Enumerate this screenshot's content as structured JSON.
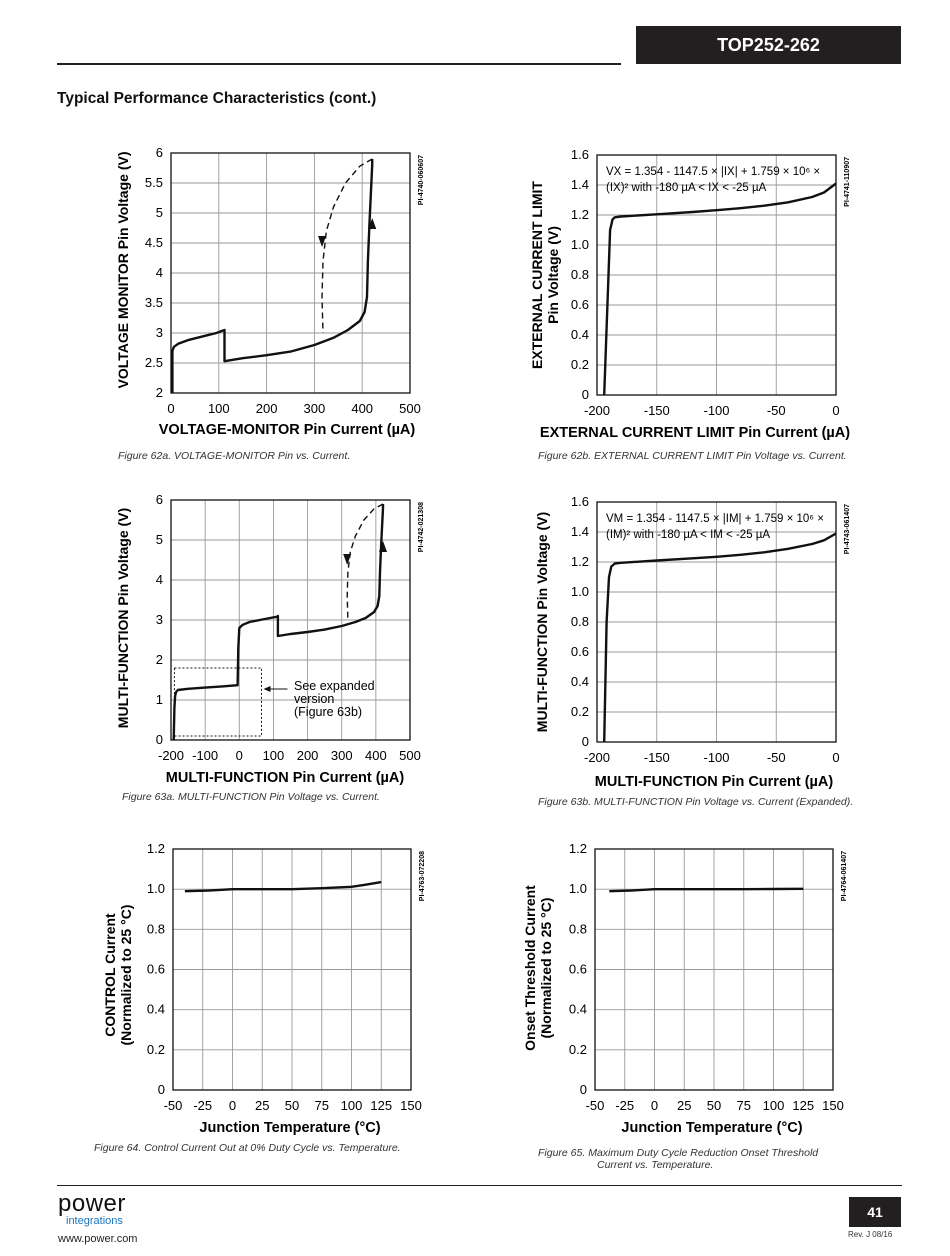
{
  "header": {
    "part_number": "TOP252-262",
    "section_title": "Typical Performance Characteristics (cont.)"
  },
  "footer": {
    "logo_power": "power",
    "logo_integrations": "integrations",
    "url": "www.power.com",
    "page_number": "41",
    "revision": "Rev. J 08/16"
  },
  "chart_data": [
    {
      "id": "fig62a",
      "type": "line",
      "code": "PI-4740-060607",
      "caption": "Figure 62a.  VOLTAGE-MONITOR Pin vs. Current.",
      "xlabel": "VOLTAGE-MONITOR Pin Current (µA)",
      "ylabel": "VOLTAGE MONITOR Pin Voltage (V)",
      "xlim": [
        0,
        500
      ],
      "ylim": [
        2,
        6
      ],
      "xticks": [
        "0",
        "100",
        "200",
        "300",
        "400",
        "500"
      ],
      "yticks": [
        "2",
        "2.5",
        "3",
        "3.5",
        "4",
        "4.5",
        "5",
        "5.5",
        "6"
      ],
      "grid": true,
      "series": [
        {
          "style": "solid",
          "x": [
            3,
            3,
            6,
            15,
            35,
            65,
            95,
            112,
            112,
            150,
            200,
            250,
            300,
            340,
            370,
            395,
            405,
            410,
            412,
            415,
            418,
            421,
            421
          ],
          "y": [
            2,
            2.7,
            2.77,
            2.82,
            2.88,
            2.94,
            3.0,
            3.05,
            2.53,
            2.58,
            2.63,
            2.69,
            2.8,
            2.92,
            3.05,
            3.2,
            3.35,
            3.6,
            4.2,
            4.8,
            5.3,
            5.8,
            5.9
          ]
        },
        {
          "style": "dashed",
          "x": [
            421,
            395,
            365,
            340,
            325,
            318,
            316,
            318
          ],
          "y": [
            5.9,
            5.78,
            5.5,
            5.1,
            4.7,
            4.2,
            3.6,
            3.0
          ]
        }
      ],
      "arrows": [
        {
          "x": 421,
          "y": 4.8,
          "dir": "up"
        },
        {
          "x": 316,
          "y": 4.55,
          "dir": "down"
        }
      ]
    },
    {
      "id": "fig62b",
      "type": "line",
      "code": "PI-4741-110907",
      "caption": "Figure 62b.  EXTERNAL CURRENT LIMIT Pin Voltage vs. Current.",
      "xlabel": "EXTERNAL CURRENT LIMIT Pin Current (µA)",
      "ylabel": [
        "EXTERNAL CURRENT LIMIT",
        "Pin Voltage (V)"
      ],
      "xlim": [
        -200,
        0
      ],
      "ylim": [
        0,
        1.6
      ],
      "xticks": [
        "-200",
        "-150",
        "-100",
        "-50",
        "0"
      ],
      "yticks": [
        "0",
        "0.2",
        "0.4",
        "0.6",
        "0.8",
        "1.0",
        "1.2",
        "1.4",
        "1.6"
      ],
      "grid": true,
      "annotation": [
        "VX = 1.354 - 1147.5 × |IX| + 1.759 × 10⁶ ×",
        "(IX)² with -180 µA < IX < -25 µA"
      ],
      "series": [
        {
          "style": "solid",
          "x": [
            -194,
            -189,
            -187,
            -185,
            -180,
            -150,
            -120,
            -100,
            -80,
            -60,
            -40,
            -20,
            -10,
            0
          ],
          "y": [
            0,
            1.1,
            1.17,
            1.185,
            1.19,
            1.205,
            1.22,
            1.232,
            1.245,
            1.262,
            1.285,
            1.32,
            1.35,
            1.41
          ]
        }
      ]
    },
    {
      "id": "fig63a",
      "type": "line",
      "code": "PI-4742-021308",
      "caption": "Figure 63a. MULTI-FUNCTION Pin Voltage vs. Current.",
      "xlabel": "MULTI-FUNCTION Pin Current (µA)",
      "ylabel": "MULTI-FUNCTION Pin Voltage (V)",
      "xlim": [
        -200,
        500
      ],
      "ylim": [
        0,
        6
      ],
      "xticks": [
        "-200",
        "-100",
        "0",
        "100",
        "200",
        "300",
        "400",
        "500"
      ],
      "yticks": [
        "0",
        "1",
        "2",
        "3",
        "4",
        "5",
        "6"
      ],
      "grid": true,
      "annotation": [
        "See expanded",
        "version",
        "(Figure 63b)"
      ],
      "expanded_box": {
        "x": [
          -190,
          65
        ],
        "y": [
          0.1,
          1.8
        ]
      },
      "series": [
        {
          "style": "solid",
          "x": [
            -192,
            -190,
            -188,
            -185,
            -180,
            -150,
            -100,
            -50,
            -5,
            -3,
            0,
            10,
            30,
            60,
            90,
            110,
            113,
            113,
            150,
            200,
            250,
            300,
            340,
            370,
            395,
            405,
            410,
            412,
            415,
            418,
            421,
            421
          ],
          "y": [
            0,
            0.8,
            1.1,
            1.2,
            1.25,
            1.28,
            1.31,
            1.34,
            1.37,
            2.3,
            2.8,
            2.88,
            2.95,
            3.0,
            3.05,
            3.08,
            3.1,
            2.6,
            2.65,
            2.7,
            2.76,
            2.85,
            2.95,
            3.05,
            3.2,
            3.35,
            3.6,
            4.2,
            4.8,
            5.3,
            5.8,
            5.9
          ]
        },
        {
          "style": "dashed",
          "x": [
            421,
            395,
            365,
            340,
            325,
            318,
            316,
            318
          ],
          "y": [
            5.9,
            5.78,
            5.5,
            5.1,
            4.7,
            4.2,
            3.6,
            3.0
          ]
        }
      ],
      "arrows": [
        {
          "x": 421,
          "y": 4.8,
          "dir": "up"
        },
        {
          "x": 316,
          "y": 4.55,
          "dir": "down"
        }
      ]
    },
    {
      "id": "fig63b",
      "type": "line",
      "code": "PI-4743-061407",
      "caption": "Figure 63b.  MULTI-FUNCTION Pin Voltage vs. Current (Expanded).",
      "xlabel": "MULTI-FUNCTION Pin Current (µA)",
      "ylabel": "MULTI-FUNCTION Pin Voltage (V)",
      "xlim": [
        -200,
        0
      ],
      "ylim": [
        0,
        1.6
      ],
      "xticks": [
        "-200",
        "-150",
        "-100",
        "-50",
        "0"
      ],
      "yticks": [
        "0",
        "0.2",
        "0.4",
        "0.6",
        "0.8",
        "1.0",
        "1.2",
        "1.4",
        "1.6"
      ],
      "grid": true,
      "annotation": [
        "VM = 1.354 - 1147.5 × |IM| + 1.759 × 10⁶ ×",
        "(IM)² with -180 µA < IM < -25 µA"
      ],
      "series": [
        {
          "style": "solid",
          "x": [
            -194,
            -192,
            -190,
            -188,
            -185,
            -180,
            -150,
            -120,
            -100,
            -80,
            -60,
            -40,
            -20,
            -10,
            0
          ],
          "y": [
            0,
            0.8,
            1.1,
            1.17,
            1.19,
            1.195,
            1.21,
            1.225,
            1.235,
            1.248,
            1.265,
            1.288,
            1.32,
            1.345,
            1.39
          ]
        }
      ]
    },
    {
      "id": "fig64",
      "type": "line",
      "code": "PI-4763-072208",
      "caption": "Figure 64.   Control Current Out at 0% Duty Cycle vs. Temperature.",
      "xlabel": "Junction Temperature (°C)",
      "ylabel": [
        "CONTROL Current",
        "(Normalized to 25 °C)"
      ],
      "xlim": [
        -50,
        150
      ],
      "ylim": [
        0,
        1.2
      ],
      "xticks": [
        "-50",
        "-25",
        "0",
        "25",
        "50",
        "75",
        "100",
        "125",
        "150"
      ],
      "yticks": [
        "0",
        "0.2",
        "0.4",
        "0.6",
        "0.8",
        "1.0",
        "1.2"
      ],
      "grid": true,
      "series": [
        {
          "style": "solid",
          "x": [
            -40,
            -20,
            0,
            25,
            50,
            75,
            100,
            110,
            125
          ],
          "y": [
            0.99,
            0.993,
            1.0,
            1.0,
            1.0,
            1.005,
            1.012,
            1.02,
            1.035
          ]
        }
      ]
    },
    {
      "id": "fig65",
      "type": "line",
      "code": "PI-4764-061407",
      "caption": [
        "Figure 65.   Maximum Duty Cycle Reduction Onset Threshold",
        "Current vs. Temperature."
      ],
      "xlabel": "Junction Temperature (°C)",
      "ylabel": [
        "Onset Threshold Current",
        "(Normalized to 25 °C)"
      ],
      "xlim": [
        -50,
        150
      ],
      "ylim": [
        0,
        1.2
      ],
      "xticks": [
        "-50",
        "-25",
        "0",
        "25",
        "50",
        "75",
        "100",
        "125",
        "150"
      ],
      "yticks": [
        "0",
        "0.2",
        "0.4",
        "0.6",
        "0.8",
        "1.0",
        "1.2"
      ],
      "grid": true,
      "series": [
        {
          "style": "solid",
          "x": [
            -38,
            -20,
            0,
            25,
            50,
            75,
            100,
            125
          ],
          "y": [
            0.99,
            0.993,
            1.0,
            1.0,
            1.0,
            1.0,
            1.001,
            1.002
          ]
        }
      ]
    }
  ]
}
